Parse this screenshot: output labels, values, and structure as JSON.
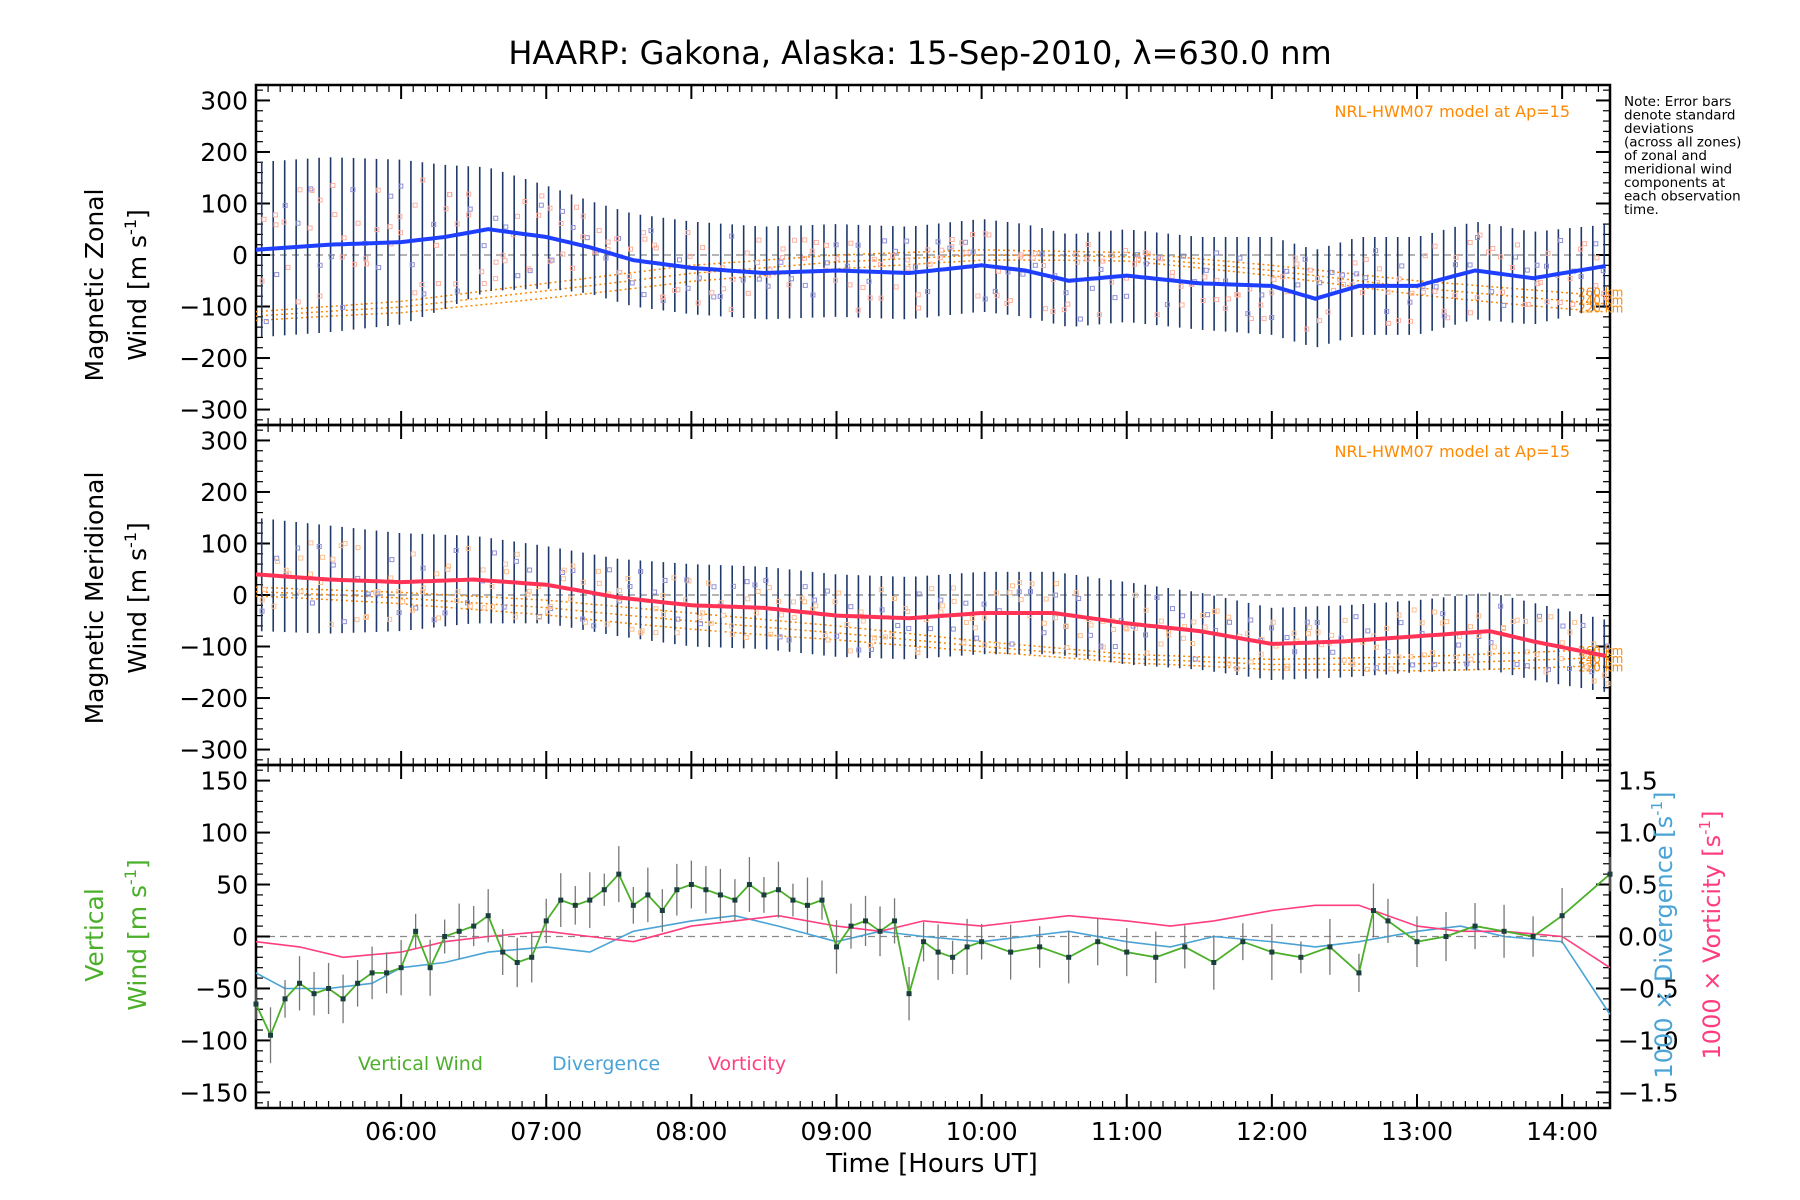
{
  "title": "HAARP: Gakona,  Alaska: 15-Sep-2010, λ=630.0 nm",
  "note": [
    "Note: Error bars",
    "denote standard",
    "deviations",
    "(across all zones)",
    "of zonal and",
    "meridional wind",
    "components at",
    "each observation",
    "time."
  ],
  "colors": {
    "zonal": "#1f3fff",
    "meridional": "#ff3355",
    "model": "#ff8800",
    "vertical": "#4caf2a",
    "divergence": "#4aa3d6",
    "vorticity": "#ff3d7f",
    "errorbar": "#1f3a6a",
    "scatter": "#8f8fd6",
    "axis": "#000000",
    "zero": "#888888"
  },
  "xaxis": {
    "label": "Time [Hours UT]",
    "ticks": [
      "06:00",
      "07:00",
      "08:00",
      "09:00",
      "10:00",
      "11:00",
      "12:00",
      "13:00",
      "14:00"
    ],
    "tick_values": [
      6,
      7,
      8,
      9,
      10,
      11,
      12,
      13,
      14
    ],
    "range": [
      5.0,
      14.33
    ]
  },
  "panel_zonal": {
    "ylabel_line1": "Magnetic Zonal",
    "ylabel_line2": "Wind [m s",
    "ylabel_sup": "-1",
    "ylabel_close": "]",
    "model_label": "NRL-HWM07 model at Ap=15",
    "model_heights": [
      "260 km",
      "240 km",
      "220 km"
    ],
    "ticks": [
      "300",
      "200",
      "100",
      "0",
      "−100",
      "−200",
      "−300"
    ]
  },
  "panel_merid": {
    "ylabel_line1": "Magnetic Meridional",
    "ylabel_line2": "Wind [m s",
    "ylabel_sup": "-1",
    "ylabel_close": "]",
    "model_label": "NRL-HWM07 model at Ap=15",
    "model_heights": [
      "260 km",
      "240 km",
      "220 km"
    ],
    "ticks": [
      "300",
      "200",
      "100",
      "0",
      "−100",
      "−200",
      "−300"
    ]
  },
  "panel_vert": {
    "ylabel_line1": "Vertical",
    "ylabel_line2": "Wind [m s",
    "ylabel_sup": "-1",
    "ylabel_close": "]",
    "ticks": [
      "150",
      "100",
      "50",
      "0",
      "−50",
      "−100",
      "−150"
    ],
    "right_ticks": [
      "1.5",
      "1.0",
      "0.5",
      "0.0",
      "−0.5",
      "−1.0",
      "−1.5"
    ],
    "right_label_div": "1000 × Divergence [s",
    "right_label_vort": "1000 × Vorticity [s",
    "right_sup": "-1",
    "right_close": "]",
    "legend": [
      "Vertical Wind",
      "Divergence",
      "Vorticity"
    ]
  },
  "chart_data": [
    {
      "type": "line",
      "title": "HAARP: Gakona,  Alaska: 15-Sep-2010, λ=630.0 nm",
      "xlabel": "Time [Hours UT]",
      "ylabel": "Magnetic Zonal Wind [m s-1]",
      "ylim": [
        -330,
        330
      ],
      "xlim": [
        5.0,
        14.33
      ],
      "series": [
        {
          "name": "Magnetic Zonal Wind",
          "x": [
            5.0,
            5.5,
            6.0,
            6.3,
            6.6,
            7.0,
            7.3,
            7.6,
            8.0,
            8.5,
            9.0,
            9.5,
            10.0,
            10.3,
            10.6,
            11.0,
            11.5,
            12.0,
            12.3,
            12.6,
            13.0,
            13.4,
            13.8,
            14.33
          ],
          "y": [
            10,
            20,
            25,
            35,
            50,
            35,
            15,
            -10,
            -25,
            -35,
            -30,
            -35,
            -20,
            -30,
            -50,
            -40,
            -55,
            -60,
            -85,
            -60,
            -60,
            -30,
            -45,
            -20
          ],
          "error": [
            170,
            170,
            160,
            140,
            120,
            100,
            90,
            90,
            90,
            90,
            90,
            90,
            90,
            90,
            90,
            90,
            90,
            95,
            95,
            95,
            95,
            95,
            90,
            80
          ]
        },
        {
          "name": "NRL-HWM07 model at Ap=15",
          "x": [
            5.0,
            6.0,
            7.0,
            8.0,
            9.0,
            10.0,
            11.0,
            12.0,
            13.0,
            14.33
          ],
          "y": [
            -110,
            -90,
            -55,
            -20,
            0,
            10,
            5,
            -20,
            -50,
            -80
          ]
        }
      ]
    },
    {
      "type": "line",
      "xlabel": "Time [Hours UT]",
      "ylabel": "Magnetic Meridional Wind [m s-1]",
      "ylim": [
        -330,
        330
      ],
      "xlim": [
        5.0,
        14.33
      ],
      "series": [
        {
          "name": "Magnetic Meridional Wind",
          "x": [
            5.0,
            5.5,
            6.0,
            6.5,
            7.0,
            7.5,
            8.0,
            8.5,
            9.0,
            9.5,
            10.0,
            10.5,
            11.0,
            11.5,
            12.0,
            12.5,
            13.0,
            13.5,
            13.8,
            14.33
          ],
          "y": [
            40,
            30,
            25,
            30,
            20,
            -5,
            -20,
            -25,
            -40,
            -45,
            -35,
            -35,
            -55,
            -70,
            -95,
            -90,
            -80,
            -70,
            -90,
            -120
          ],
          "error": [
            110,
            105,
            95,
            85,
            75,
            75,
            80,
            80,
            80,
            80,
            80,
            80,
            80,
            75,
            70,
            70,
            70,
            75,
            75,
            70
          ]
        },
        {
          "name": "NRL-HWM07 model at Ap=15",
          "x": [
            5.0,
            6.0,
            7.0,
            8.0,
            9.0,
            10.0,
            11.0,
            12.0,
            13.0,
            14.33
          ],
          "y": [
            15,
            5,
            -10,
            -35,
            -60,
            -90,
            -115,
            -125,
            -120,
            -105
          ]
        }
      ]
    },
    {
      "type": "line",
      "xlabel": "Time [Hours UT]",
      "ylabel": "Vertical Wind [m s-1]",
      "ylim": [
        -165,
        165
      ],
      "ylim_right": [
        -1.65,
        1.65
      ],
      "xlim": [
        5.0,
        14.33
      ],
      "legend": [
        "Vertical Wind",
        "Divergence",
        "Vorticity"
      ],
      "series": [
        {
          "name": "Vertical Wind",
          "x": [
            5.0,
            5.1,
            5.2,
            5.3,
            5.4,
            5.5,
            5.6,
            5.7,
            5.8,
            5.9,
            6.0,
            6.1,
            6.2,
            6.3,
            6.4,
            6.5,
            6.6,
            6.7,
            6.8,
            6.9,
            7.0,
            7.1,
            7.2,
            7.3,
            7.4,
            7.5,
            7.6,
            7.7,
            7.8,
            7.9,
            8.0,
            8.1,
            8.2,
            8.3,
            8.4,
            8.5,
            8.6,
            8.7,
            8.8,
            8.9,
            9.0,
            9.1,
            9.2,
            9.3,
            9.4,
            9.5,
            9.6,
            9.7,
            9.8,
            9.9,
            10.0,
            10.2,
            10.4,
            10.6,
            10.8,
            11.0,
            11.2,
            11.4,
            11.6,
            11.8,
            12.0,
            12.2,
            12.4,
            12.6,
            12.7,
            12.8,
            13.0,
            13.2,
            13.4,
            13.6,
            13.8,
            14.0,
            14.33
          ],
          "y": [
            -65,
            -95,
            -60,
            -45,
            -55,
            -50,
            -60,
            -45,
            -35,
            -35,
            -30,
            5,
            -30,
            0,
            5,
            10,
            20,
            -15,
            -25,
            -20,
            15,
            35,
            30,
            35,
            45,
            60,
            30,
            40,
            25,
            45,
            50,
            45,
            40,
            35,
            50,
            40,
            45,
            35,
            30,
            35,
            -10,
            10,
            15,
            5,
            15,
            -55,
            -5,
            -15,
            -20,
            -10,
            -5,
            -15,
            -10,
            -20,
            -5,
            -15,
            -20,
            -10,
            -25,
            -5,
            -15,
            -20,
            -10,
            -35,
            25,
            15,
            -5,
            0,
            10,
            5,
            0,
            20,
            60
          ]
        },
        {
          "name": "Divergence",
          "x": [
            5.0,
            5.2,
            5.5,
            5.8,
            6.0,
            6.3,
            6.6,
            7.0,
            7.3,
            7.6,
            8.0,
            8.3,
            8.6,
            9.0,
            9.3,
            9.6,
            10.0,
            10.3,
            10.6,
            11.0,
            11.3,
            11.6,
            12.0,
            12.3,
            12.6,
            13.0,
            13.3,
            13.6,
            14.0,
            14.33
          ],
          "y": [
            -0.35,
            -0.5,
            -0.5,
            -0.45,
            -0.3,
            -0.25,
            -0.15,
            -0.1,
            -0.15,
            0.05,
            0.15,
            0.2,
            0.1,
            -0.05,
            0.05,
            0.0,
            -0.05,
            0.0,
            0.05,
            -0.05,
            -0.1,
            0.0,
            -0.05,
            -0.1,
            -0.05,
            0.05,
            0.1,
            0.0,
            -0.05,
            -0.75
          ]
        },
        {
          "name": "Vorticity",
          "x": [
            5.0,
            5.3,
            5.6,
            6.0,
            6.3,
            6.6,
            7.0,
            7.3,
            7.6,
            8.0,
            8.3,
            8.6,
            9.0,
            9.3,
            9.6,
            10.0,
            10.3,
            10.6,
            11.0,
            11.3,
            11.6,
            12.0,
            12.3,
            12.6,
            13.0,
            13.3,
            13.6,
            14.0,
            14.33
          ],
          "y": [
            -0.05,
            -0.1,
            -0.2,
            -0.15,
            -0.05,
            0.0,
            0.05,
            0.0,
            -0.05,
            0.1,
            0.15,
            0.2,
            0.1,
            0.05,
            0.15,
            0.1,
            0.15,
            0.2,
            0.15,
            0.1,
            0.15,
            0.25,
            0.3,
            0.3,
            0.1,
            0.05,
            0.05,
            0.0,
            -0.3
          ]
        }
      ]
    }
  ]
}
